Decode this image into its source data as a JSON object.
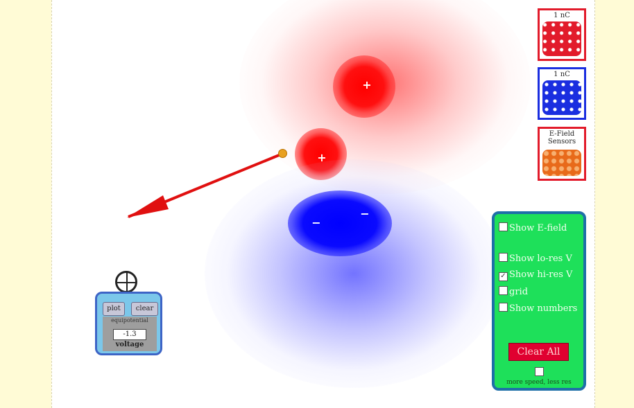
{
  "buckets": [
    {
      "label": "1 nC",
      "color": "#e21b2b"
    },
    {
      "label": "1 nC",
      "color": "#1a2ee0"
    },
    {
      "label": "E-Field Sensors",
      "color": "#e86a1a"
    }
  ],
  "charges": [
    {
      "sign": "+"
    },
    {
      "sign": "+"
    },
    {
      "sign": "−"
    },
    {
      "sign": "−"
    }
  ],
  "voltage_sensor": {
    "plot_button": "plot",
    "clear_button": "clear",
    "caption": "equipotential",
    "value": "-1.3",
    "unit_label": "voltage"
  },
  "controls": {
    "show_efield": "Show E-field",
    "show_lores": "Show lo-res V",
    "show_hires": "Show hi-res V",
    "show_hires_checked": true,
    "grid": "grid",
    "show_numbers": "Show numbers",
    "clear_all": "Clear All",
    "more_speed": "more speed, less res"
  },
  "colors": {
    "positive": "#ff0000",
    "negative": "#0000ff",
    "panel": "#1ee05a",
    "background": "#fffbd6"
  }
}
